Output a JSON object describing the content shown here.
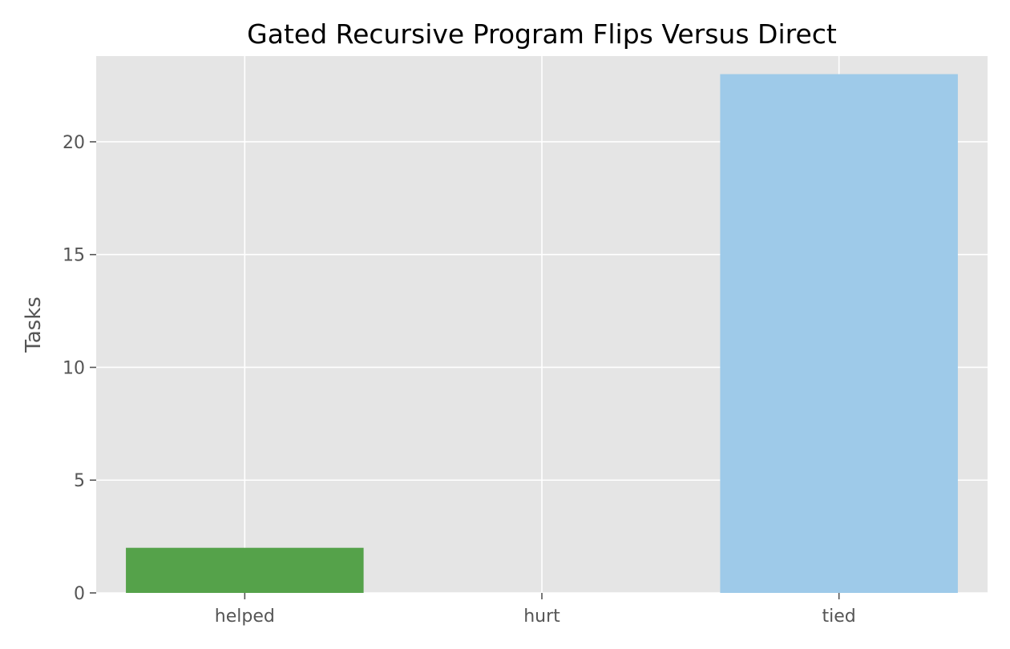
{
  "chart_data": {
    "type": "bar",
    "title": "Gated Recursive Program Flips Versus Direct",
    "xlabel": "",
    "ylabel": "Tasks",
    "categories": [
      "helped",
      "hurt",
      "tied"
    ],
    "values": [
      2,
      0,
      23
    ],
    "colors": [
      "#55a24a",
      "#e5e5e5",
      "#9ecae9"
    ],
    "ylim": [
      0,
      23.8
    ],
    "yticks": [
      0,
      5,
      10,
      15,
      20
    ],
    "grid": true,
    "background": "#e5e5e5",
    "grid_color": "#ffffff",
    "legend": "none"
  }
}
